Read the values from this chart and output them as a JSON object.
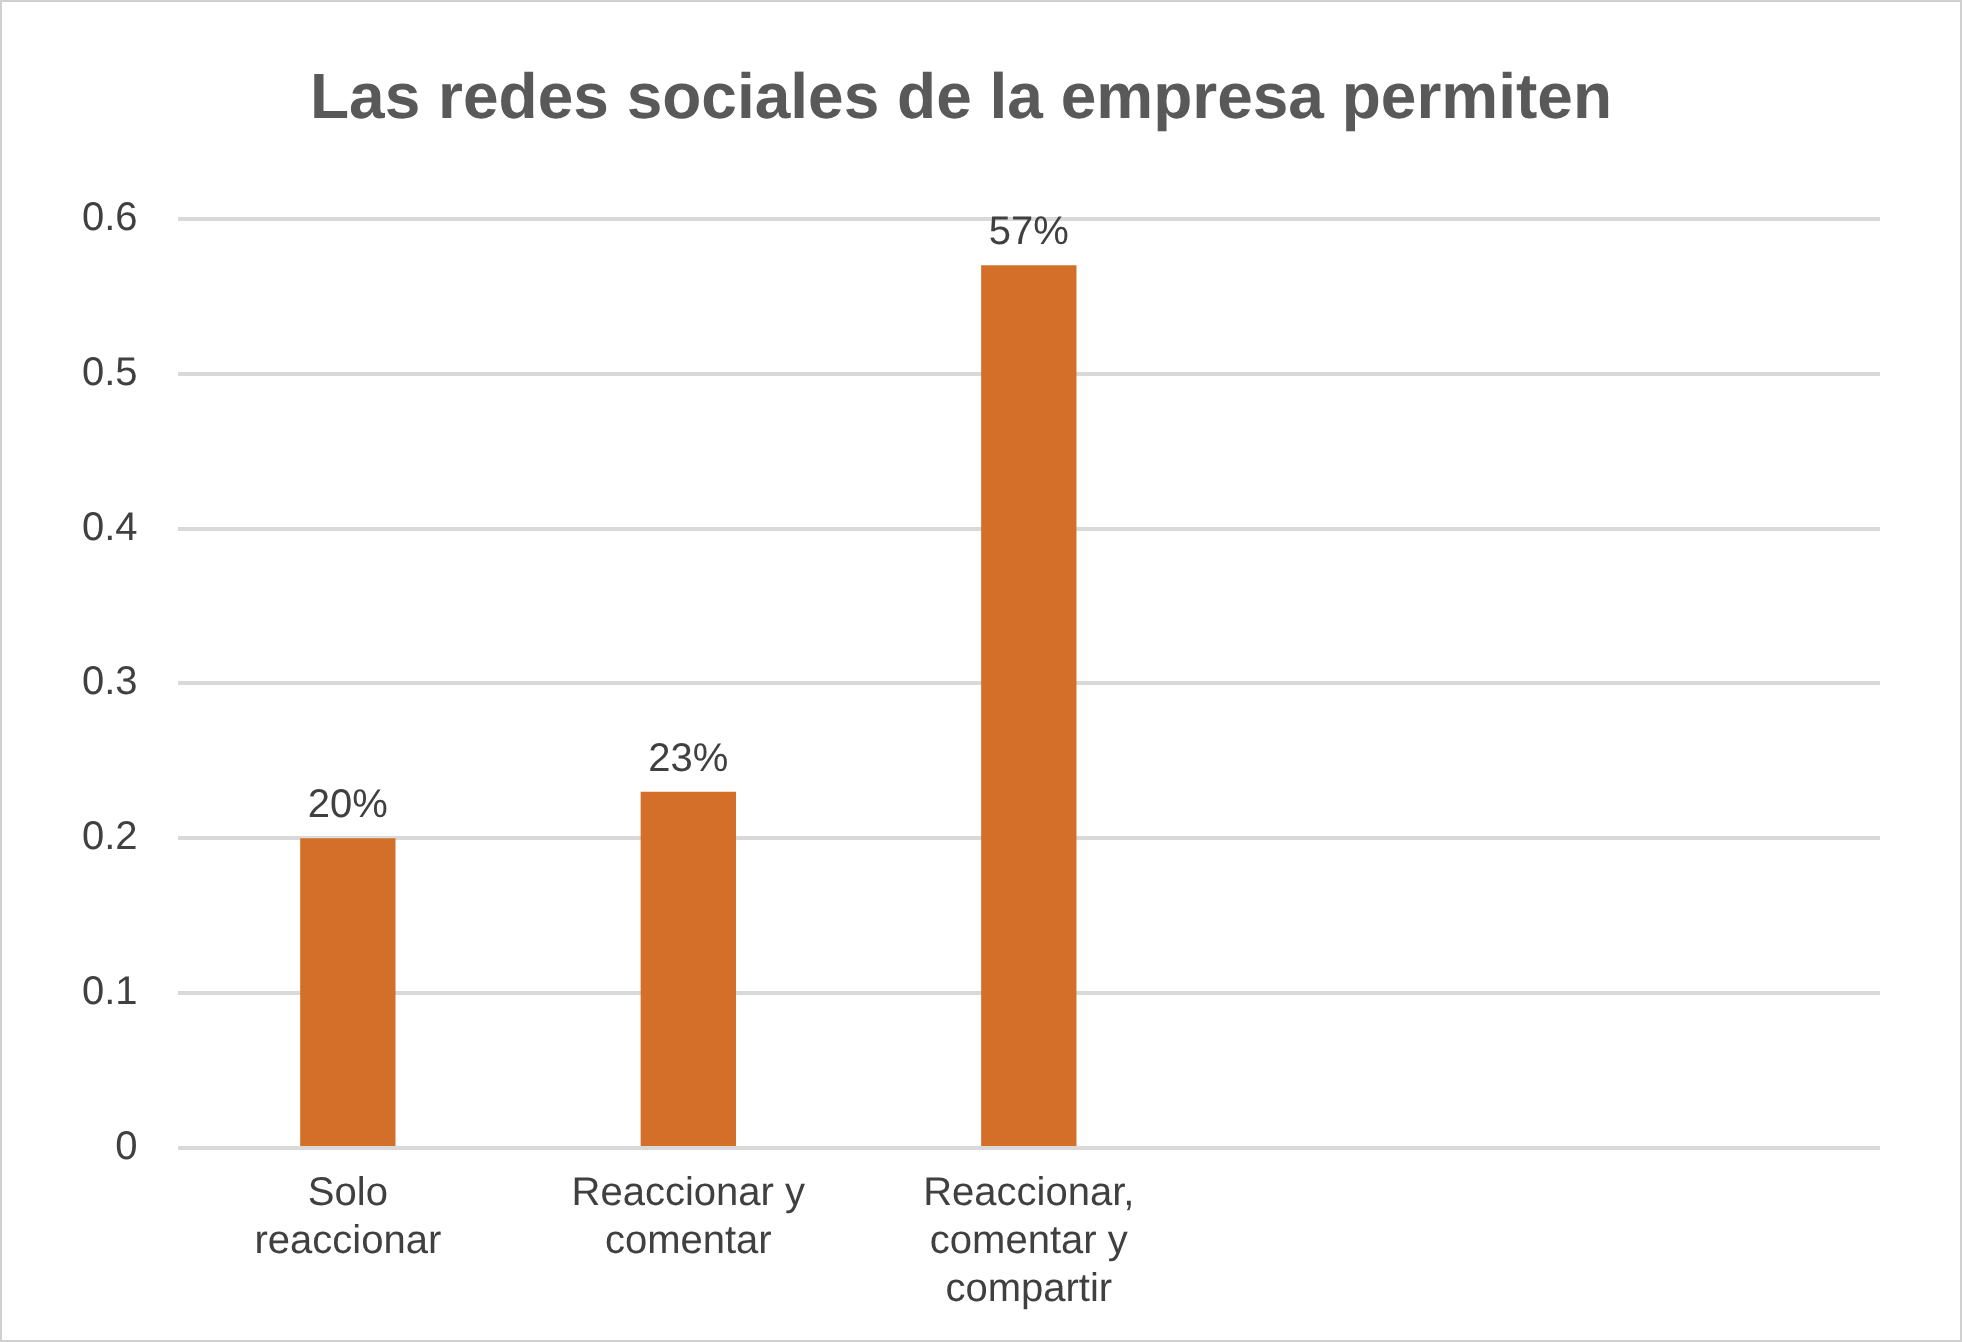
{
  "chart_data": {
    "type": "bar",
    "title": "Las redes sociales de la empresa permiten",
    "categories": [
      "Solo reaccionar",
      "Reaccionar y comentar",
      "Reaccionar, comentar y compartir",
      null,
      null
    ],
    "values": [
      0.2,
      0.23,
      0.57,
      null,
      null
    ],
    "value_labels": [
      "20%",
      "23%",
      "57%",
      null,
      null
    ],
    "color": "#d46f2a",
    "ylim": [
      0,
      0.6
    ],
    "yticks": [
      0,
      0.1,
      0.2,
      0.3,
      0.4,
      0.5,
      0.6
    ],
    "grid": "y",
    "legend": false
  }
}
